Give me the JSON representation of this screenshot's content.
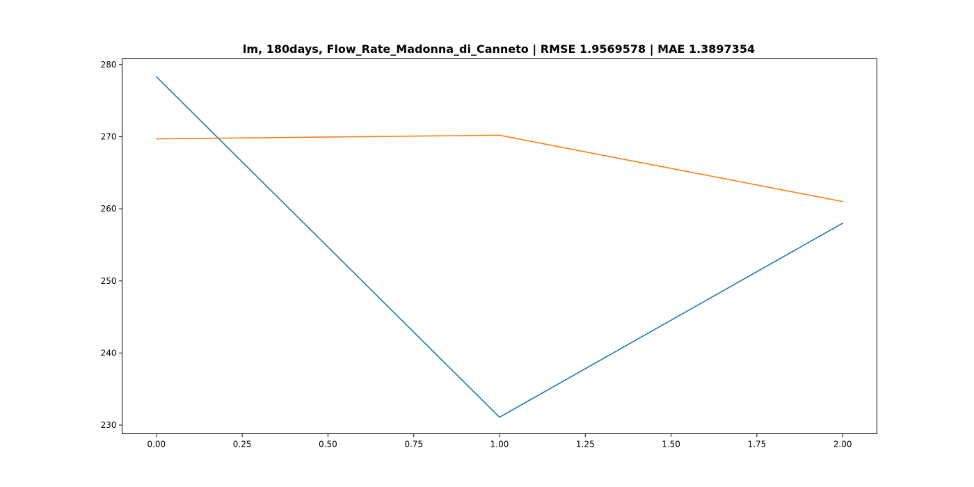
{
  "chart_data": {
    "type": "line",
    "title": "lm, 180days, Flow_Rate_Madonna_di_Canneto | RMSE 1.9569578 | MAE 1.3897354",
    "xlabel": "",
    "ylabel": "",
    "x": [
      0,
      1,
      2
    ],
    "xlim": [
      -0.1,
      2.1
    ],
    "ylim": [
      228.8,
      280.8
    ],
    "xticks": [
      0.0,
      0.25,
      0.5,
      0.75,
      1.0,
      1.25,
      1.5,
      1.75,
      2.0
    ],
    "xtick_labels": [
      "0.00",
      "0.25",
      "0.50",
      "0.75",
      "1.00",
      "1.25",
      "1.50",
      "1.75",
      "2.00"
    ],
    "yticks": [
      230,
      240,
      250,
      260,
      270,
      280
    ],
    "ytick_labels": [
      "230",
      "240",
      "250",
      "260",
      "270",
      "280"
    ],
    "grid": false,
    "legend": "none",
    "series": [
      {
        "values": [
          278.3,
          231.1,
          258.0
        ],
        "color": "#1f77b4"
      },
      {
        "values": [
          269.7,
          270.2,
          261.0
        ],
        "color": "#ff7f0e"
      }
    ]
  }
}
